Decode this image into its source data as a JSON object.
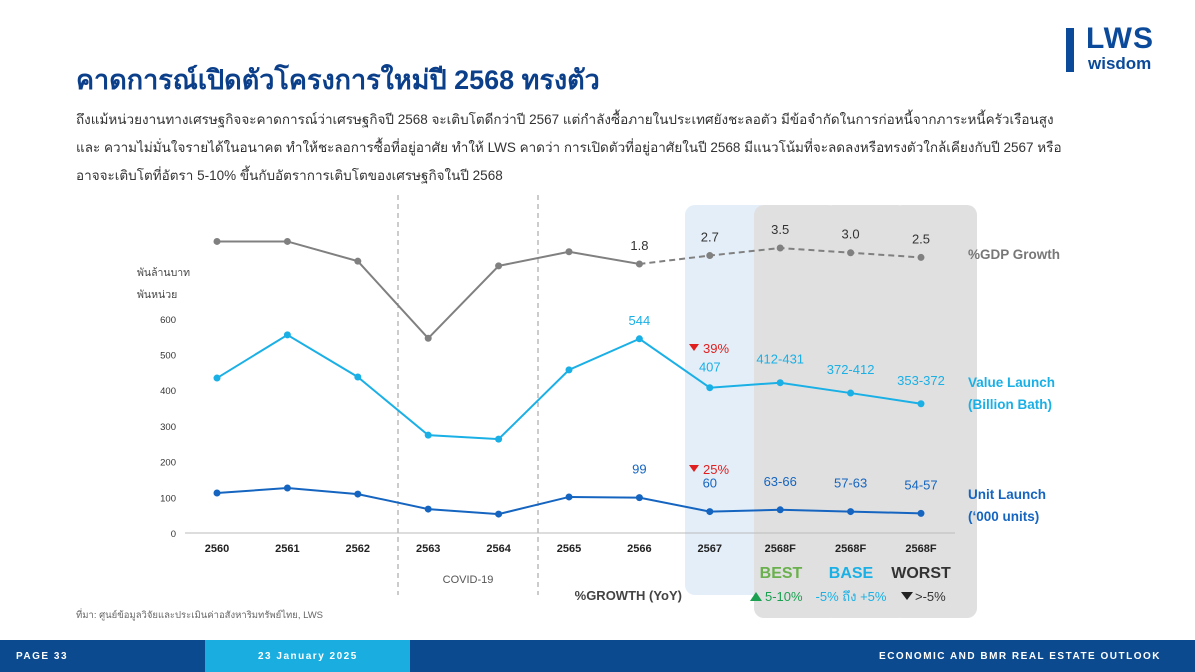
{
  "header": {
    "title": "คาดการณ์เปิดตัวโครงการใหม่ปี 2568 ทรงตัว",
    "logo_main": "LWS",
    "logo_sub": "wisdom"
  },
  "description": [
    "ถึงแม้หน่วยงานทางเศรษฐกิจจะคาดการณ์ว่าเศรษฐกิจปี 2568 จะเติบโตดีกว่าปี 2567 แต่กำลังซื้อภายในประเทศยังชะลอตัว มีข้อจำกัดในการก่อหนี้จากภาระหนี้ครัวเรือนสูง",
    "และ ความไม่มั่นใจรายได้ในอนาคต ทำให้ชะลอการซื้อที่อยู่อาศัย ทำให้ LWS คาดว่า การเปิดตัวที่อยู่อาศัยในปี 2568 มีแนวโน้มที่จะลดลงหรือทรงตัวใกล้เคียงกับปี 2567 หรือ",
    "อาจจะเติบโตที่อัตรา 5-10% ขึ้นกับอัตราการเติบโตของเศรษฐกิจในปี 2568"
  ],
  "chart_data": {
    "type": "line",
    "categories": [
      "2560",
      "2561",
      "2562",
      "2563",
      "2564",
      "2565",
      "2566",
      "2567",
      "2568F",
      "2568F",
      "2568F"
    ],
    "ylabel_lines": [
      "พันล้านบาท",
      "พันหน่วย"
    ],
    "yticks": [
      "0",
      "100",
      "200",
      "300",
      "400",
      "500",
      "600"
    ],
    "ylim": [
      0,
      600
    ],
    "series": [
      {
        "name": "%GDP Growth",
        "values": [
          4.2,
          4.2,
          2.1,
          -6.1,
          1.6,
          3.1,
          1.8,
          2.7,
          3.5,
          3.0,
          2.5
        ],
        "labels": [
          "",
          "",
          "",
          "",
          "",
          "",
          "1.8",
          "2.7",
          "3.5",
          "3.0",
          "2.5"
        ],
        "color": "#808080",
        "forecast_from": 6
      },
      {
        "name": "Value Launch",
        "legend": [
          "Value Launch",
          "(Billion Bath)"
        ],
        "values": [
          434,
          555,
          437,
          274,
          263,
          457,
          544,
          407,
          421,
          392,
          362
        ],
        "labels": [
          "",
          "",
          "",
          "",
          "",
          "",
          "544",
          "407",
          "412-431",
          "372-412",
          "353-372"
        ],
        "color": "#1ab0e6"
      },
      {
        "name": "Unit Launch",
        "legend": [
          "Unit Launch",
          "(‘000 units)"
        ],
        "values": [
          112,
          126,
          109,
          67,
          53,
          101,
          99,
          60,
          65,
          60,
          55
        ],
        "labels": [
          "",
          "",
          "",
          "",
          "",
          "",
          "99",
          "60",
          "63-66",
          "57-63",
          "54-57"
        ],
        "color": "#1565c0"
      }
    ],
    "annotations": {
      "value_change": "39%",
      "unit_change": "25%",
      "covid": "COVID-19"
    },
    "scenarios": [
      {
        "name": "BEST",
        "growth": "5-10%",
        "color": "#6ab04c",
        "arrow": "up"
      },
      {
        "name": "BASE",
        "growth": "-5% ถึง +5%",
        "color": "#1ab0e6"
      },
      {
        "name": "WORST",
        "growth": ">-5%",
        "color": "#333333",
        "arrow": "down"
      }
    ],
    "growth_label": "%GROWTH (YoY)"
  },
  "source": "ที่มา: ศูนย์ข้อมูลวิจัยและประเมินค่าอสังหาริมทรัพย์ไทย, LWS",
  "footer": {
    "page": "PAGE 33",
    "date": "23 January 2025",
    "report": "ECONOMIC AND BMR REAL ESTATE OUTLOOK"
  }
}
